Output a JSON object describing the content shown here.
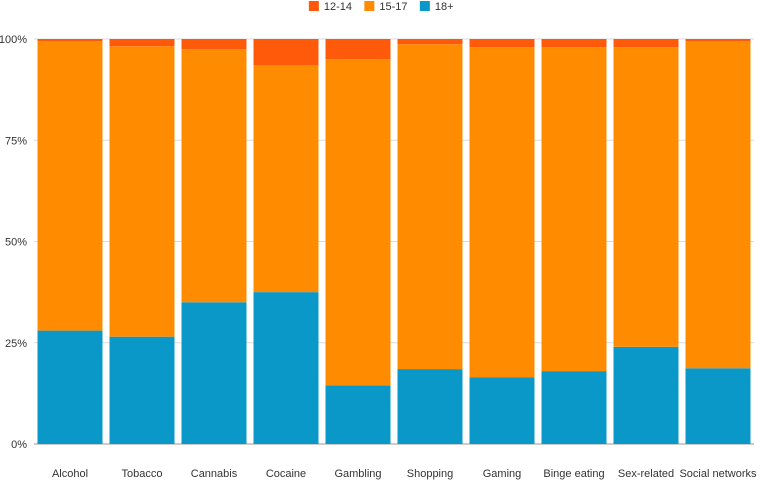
{
  "chart_data": {
    "type": "bar",
    "stacked": true,
    "normalized": true,
    "categories": [
      "Alcohol",
      "Tobacco",
      "Cannabis",
      "Cocaine",
      "Gambling",
      "Shopping",
      "Gaming",
      "Binge eating",
      "Sex-related",
      "Social networks"
    ],
    "series": [
      {
        "name": "18+",
        "color": "#0a98c9",
        "values": [
          28,
          26.5,
          35,
          37.5,
          14.5,
          18.5,
          16.5,
          18,
          24,
          18.7
        ]
      },
      {
        "name": "15-17",
        "color": "#ff8c00",
        "values": [
          71.5,
          71.7,
          62.5,
          56,
          80.5,
          80.2,
          81.5,
          80,
          74,
          80.8
        ]
      },
      {
        "name": "12-14",
        "color": "#ff5a0a",
        "values": [
          0.5,
          1.8,
          2.5,
          6.5,
          5,
          1.3,
          2,
          2,
          2,
          0.5
        ]
      }
    ],
    "legend": {
      "position": "top-center",
      "order": [
        "12-14",
        "15-17",
        "18+"
      ]
    },
    "y_ticks": [
      "0%",
      "25%",
      "50%",
      "75%",
      "100%"
    ],
    "ylim": [
      0,
      100
    ],
    "grid": true
  }
}
